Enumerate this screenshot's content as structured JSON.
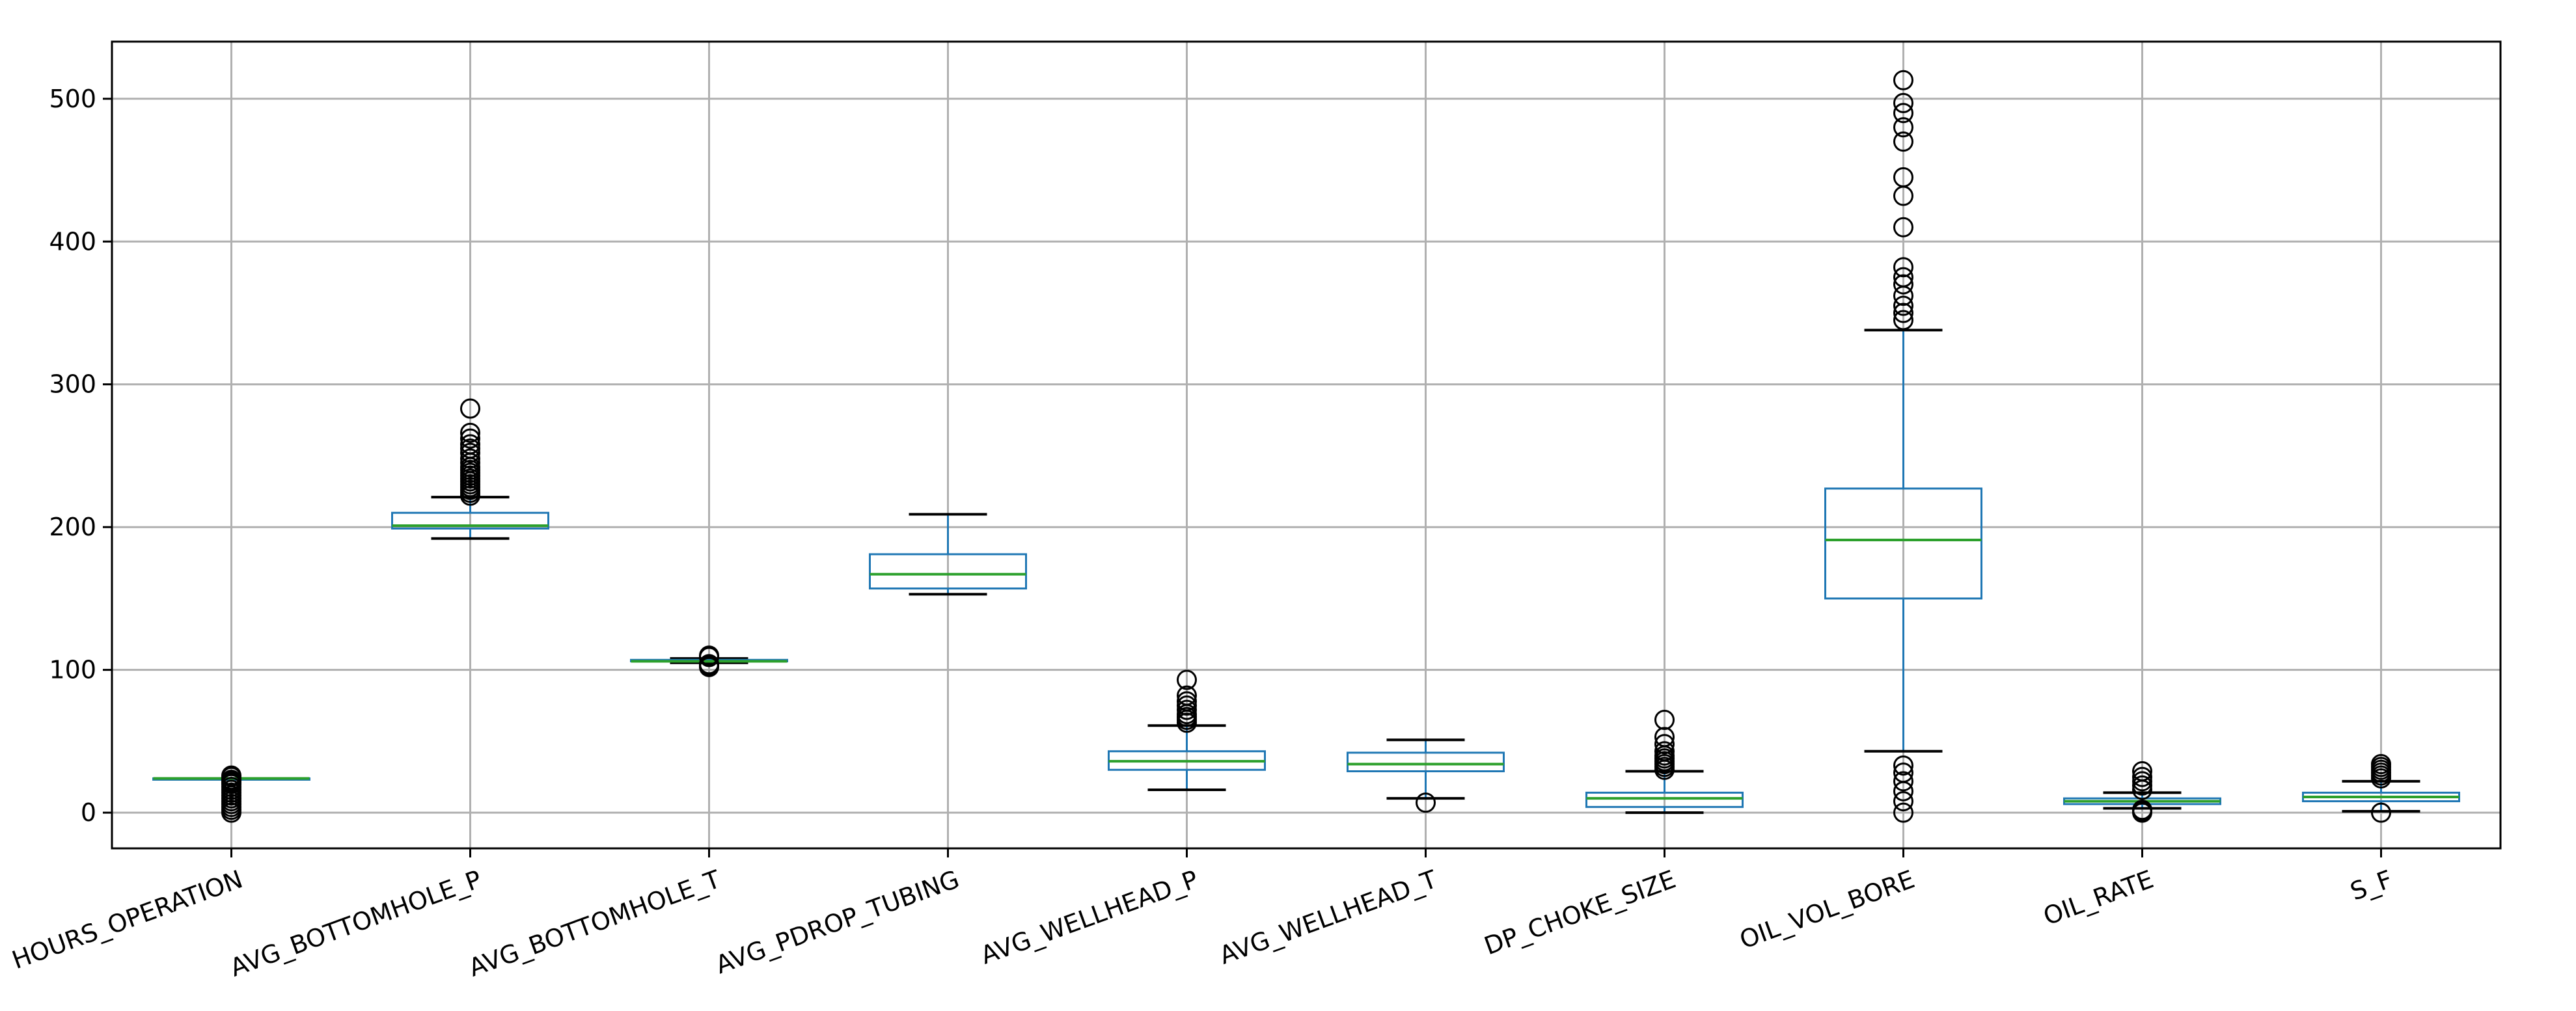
{
  "chart_data": {
    "type": "boxplot",
    "title": "",
    "xlabel": "",
    "ylabel": "",
    "ylim": [
      -25,
      540
    ],
    "yticks": [
      0,
      100,
      200,
      300,
      400,
      500
    ],
    "grid": true,
    "legend": "none",
    "colors": {
      "box": "#1f77b4",
      "median": "#2ca02c",
      "grid": "#b0b0b0",
      "axis": "#000000"
    },
    "categories": [
      "HOURS_OPERATION",
      "AVG_BOTTOMHOLE_P",
      "AVG_BOTTOMHOLE_T",
      "AVG_PDROP_TUBING",
      "AVG_WELLHEAD_P",
      "AVG_WELLHEAD_T",
      "DP_CHOKE_SIZE",
      "OIL_VOL_BORE",
      "OIL_RATE",
      "S_F"
    ],
    "boxes": [
      {
        "label": "HOURS_OPERATION",
        "q1": 24,
        "median": 24,
        "q3": 24,
        "whisker_low": 24,
        "whisker_high": 24,
        "outliers": [
          0,
          2,
          4,
          6,
          8,
          10,
          12,
          14,
          16,
          18,
          20,
          21,
          22,
          23,
          25,
          26
        ]
      },
      {
        "label": "AVG_BOTTOMHOLE_P",
        "q1": 199,
        "median": 201,
        "q3": 210,
        "whisker_low": 192,
        "whisker_high": 221,
        "outliers": [
          222,
          224,
          226,
          228,
          230,
          232,
          234,
          236,
          238,
          240,
          242,
          245,
          248,
          252,
          255,
          258,
          262,
          266,
          283
        ]
      },
      {
        "label": "AVG_BOTTOMHOLE_T",
        "q1": 106,
        "median": 106,
        "q3": 107,
        "whisker_low": 105,
        "whisker_high": 108,
        "outliers": [
          102,
          103,
          104,
          109,
          110
        ]
      },
      {
        "label": "AVG_PDROP_TUBING",
        "q1": 157,
        "median": 167,
        "q3": 181,
        "whisker_low": 153,
        "whisker_high": 209,
        "outliers": []
      },
      {
        "label": "AVG_WELLHEAD_P",
        "q1": 30,
        "median": 36,
        "q3": 43,
        "whisker_low": 16,
        "whisker_high": 61,
        "outliers": [
          63,
          65,
          67,
          69,
          72,
          75,
          78,
          82,
          93
        ]
      },
      {
        "label": "AVG_WELLHEAD_T",
        "q1": 29,
        "median": 34,
        "q3": 42,
        "whisker_low": 10,
        "whisker_high": 51,
        "outliers": [
          7
        ]
      },
      {
        "label": "DP_CHOKE_SIZE",
        "q1": 4,
        "median": 10,
        "q3": 14,
        "whisker_low": 0,
        "whisker_high": 29,
        "outliers": [
          30,
          32,
          34,
          36,
          38,
          40,
          43,
          48,
          53,
          65
        ]
      },
      {
        "label": "OIL_VOL_BORE",
        "q1": 150,
        "median": 191,
        "q3": 227,
        "whisker_low": 43,
        "whisker_high": 338,
        "outliers": [
          0,
          8,
          15,
          22,
          28,
          33,
          345,
          350,
          355,
          362,
          370,
          375,
          382,
          410,
          432,
          445,
          470,
          480,
          490,
          497,
          513
        ]
      },
      {
        "label": "OIL_RATE",
        "q1": 6,
        "median": 8,
        "q3": 10,
        "whisker_low": 3,
        "whisker_high": 14,
        "outliers": [
          0,
          1,
          2,
          16,
          19,
          22,
          25,
          29
        ]
      },
      {
        "label": "S_F",
        "q1": 8,
        "median": 11,
        "q3": 14,
        "whisker_low": 1,
        "whisker_high": 22,
        "outliers": [
          0,
          24,
          26,
          28,
          30,
          32,
          34
        ]
      }
    ]
  }
}
